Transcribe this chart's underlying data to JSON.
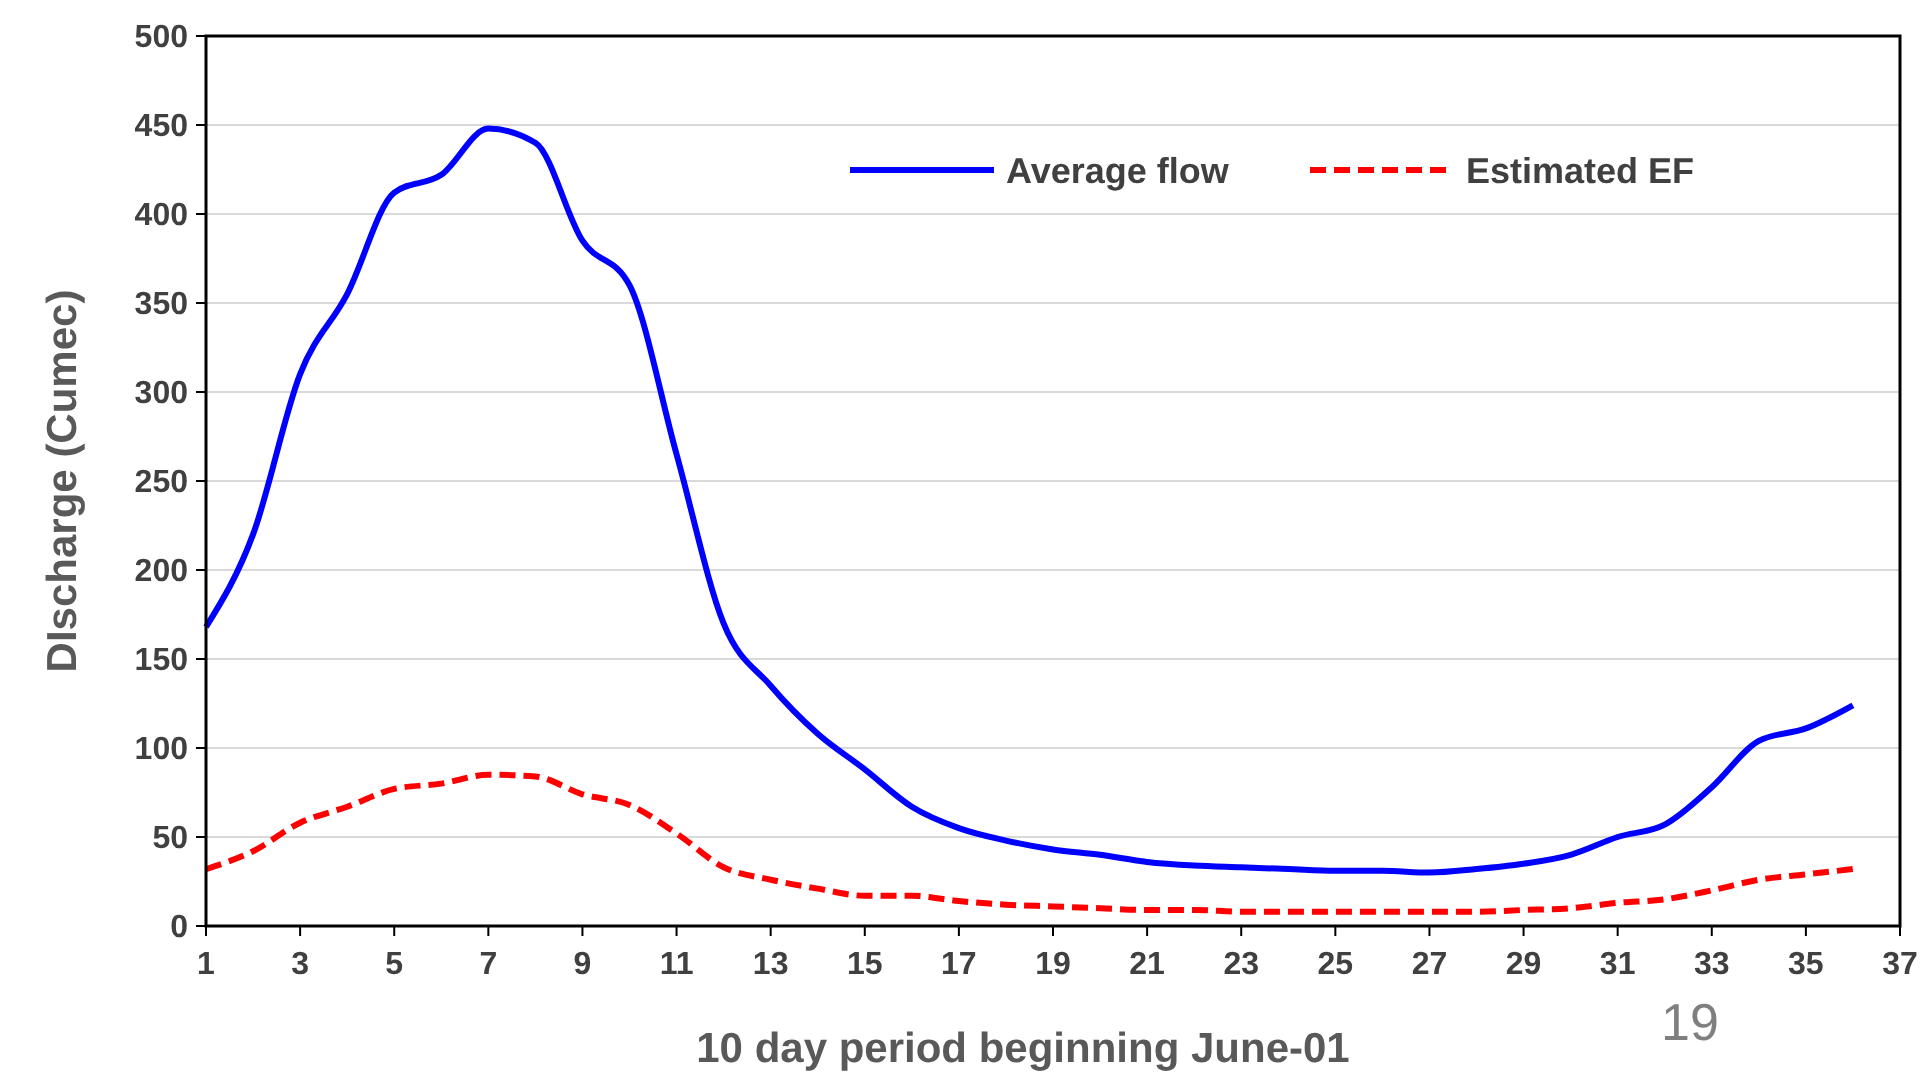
{
  "chart_data": {
    "type": "line",
    "xlabel": "10 day period beginning June-01",
    "ylabel": "DIscharge (Cumec)",
    "x": [
      1,
      2,
      3,
      4,
      5,
      6,
      7,
      8,
      9,
      10,
      11,
      12,
      13,
      14,
      15,
      16,
      17,
      18,
      19,
      20,
      21,
      22,
      23,
      24,
      25,
      26,
      27,
      28,
      29,
      30,
      31,
      32,
      33,
      34,
      35,
      36
    ],
    "series": [
      {
        "name": "Average flow",
        "color": "#0000ff",
        "line_style": "solid",
        "values": [
          168,
          220,
          310,
          355,
          412,
          422,
          448,
          440,
          385,
          360,
          265,
          170,
          135,
          108,
          88,
          67,
          55,
          48,
          43,
          40,
          36,
          34,
          33,
          32,
          31,
          31,
          30,
          32,
          35,
          40,
          50,
          57,
          78,
          104,
          111,
          124
        ]
      },
      {
        "name": "Estimated EF",
        "color": "#ff0000",
        "line_style": "dashed",
        "values": [
          32,
          42,
          58,
          67,
          77,
          80,
          85,
          84,
          74,
          68,
          52,
          33,
          26,
          21,
          17,
          17,
          14,
          12,
          11,
          10,
          9,
          9,
          8,
          8,
          8,
          8,
          8,
          8,
          9,
          10,
          13,
          15,
          20,
          26,
          29,
          32
        ]
      }
    ],
    "xlim": [
      1,
      37
    ],
    "xticks": [
      1,
      3,
      5,
      7,
      9,
      11,
      13,
      15,
      17,
      19,
      21,
      23,
      25,
      27,
      29,
      31,
      33,
      35,
      37
    ],
    "ylim": [
      0,
      500
    ],
    "yticks": [
      0,
      50,
      100,
      150,
      200,
      250,
      300,
      350,
      400,
      450,
      500
    ],
    "grid": "y",
    "legend": "top right",
    "annotations": [
      "19"
    ]
  }
}
